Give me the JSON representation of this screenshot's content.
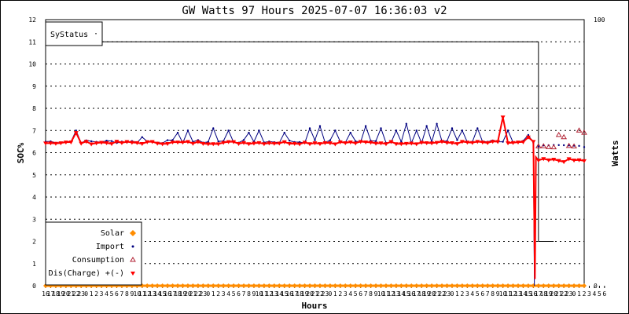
{
  "chart_data": {
    "type": "line",
    "title": "GW Watts 97 Hours 2025-07-07 16:36:03 v2",
    "xlabel": "Hours",
    "ylabel_left": "SOC%",
    "ylabel_right": "Watts",
    "y_left_range": [
      0,
      12
    ],
    "y_left_ticks": [
      "0",
      "1",
      "2",
      "3",
      "4",
      "5",
      "6",
      "7",
      "8",
      "9",
      "10",
      "11",
      "12"
    ],
    "y_right_range": [
      0,
      100
    ],
    "y_right_ticks": [
      "0",
      "100"
    ],
    "grid": "horizontal dotted",
    "legend_top_label": "SyStatus",
    "legend": [
      {
        "name": "Solar",
        "marker": "diamond",
        "color": "#ff8c00"
      },
      {
        "name": "Import",
        "marker": "dot",
        "color": "#000080"
      },
      {
        "name": "Consumption",
        "marker": "triangle-up",
        "color": "#b22234"
      },
      {
        "name": "Dis(Charge) +(-)",
        "marker": "triangle-down",
        "color": "#ff0000"
      }
    ],
    "series": [
      {
        "name": "SyStatus",
        "color": "#000000",
        "points": [
          [
            0,
            11
          ],
          [
            97,
            11
          ],
          [
            97,
            2
          ],
          [
            100,
            2
          ]
        ]
      },
      {
        "name": "Solar",
        "color": "#ff8c00",
        "constant": 0
      },
      {
        "name": "Import",
        "color": "#000080",
        "baseline": 6.5,
        "spikes": [
          [
            6,
            7.0
          ],
          [
            19,
            6.7
          ],
          [
            26,
            6.9
          ],
          [
            28,
            7.0
          ],
          [
            33,
            7.1
          ],
          [
            36,
            7.0
          ],
          [
            40,
            6.9
          ],
          [
            42,
            7.0
          ],
          [
            47,
            6.9
          ],
          [
            52,
            7.1
          ],
          [
            54,
            7.2
          ],
          [
            57,
            7.0
          ],
          [
            60,
            6.9
          ],
          [
            63,
            7.2
          ],
          [
            66,
            7.1
          ],
          [
            69,
            7.0
          ],
          [
            71,
            7.3
          ],
          [
            73,
            7.0
          ],
          [
            75,
            7.2
          ],
          [
            77,
            7.3
          ],
          [
            80,
            7.1
          ],
          [
            82,
            7.0
          ],
          [
            85,
            7.1
          ],
          [
            91,
            7.0
          ],
          [
            95,
            6.8
          ]
        ],
        "tail_level": 6.3
      },
      {
        "name": "Consumption",
        "color": "#b22234",
        "tail_level": 6.25,
        "tail_spikes": [
          [
            101,
            6.8
          ],
          [
            102,
            6.7
          ],
          [
            105,
            7.0
          ],
          [
            106,
            6.9
          ]
        ]
      },
      {
        "name": "Dis(Charge) +(-)",
        "color": "#ff0000",
        "baseline": 6.45,
        "spikes": [
          [
            6,
            6.9
          ],
          [
            90,
            7.6
          ],
          [
            95,
            6.7
          ]
        ],
        "tail_level": 5.65
      }
    ],
    "x_points": 107,
    "x_tick_labels": [
      "16",
      "17",
      "18",
      "19",
      "20",
      "21",
      "22",
      "23",
      "0",
      "1",
      "2",
      "3",
      "4",
      "5",
      "6",
      "7",
      "8",
      "9",
      "10",
      "11",
      "12",
      "13",
      "14",
      "15",
      "16",
      "17",
      "18",
      "19",
      "20",
      "21",
      "22",
      "23",
      "0",
      "1",
      "2",
      "3",
      "4",
      "5",
      "6",
      "7",
      "8",
      "9",
      "10",
      "11",
      "12",
      "13",
      "14",
      "15",
      "16",
      "17",
      "18",
      "19",
      "20",
      "21",
      "22",
      "23",
      "0",
      "1",
      "2",
      "3",
      "4",
      "5",
      "6",
      "7",
      "8",
      "9",
      "10",
      "11",
      "12",
      "13",
      "14",
      "15",
      "16",
      "17",
      "18",
      "19",
      "20",
      "21",
      "22",
      "23",
      "0",
      "1",
      "2",
      "3",
      "4",
      "5",
      "6",
      "7",
      "8",
      "9",
      "10",
      "11",
      "12",
      "13",
      "14",
      "15",
      "16",
      "17",
      "18",
      "19",
      "20",
      "21",
      "22",
      "23",
      "0",
      "1",
      "2",
      "3",
      "4",
      "5",
      "6"
    ]
  }
}
